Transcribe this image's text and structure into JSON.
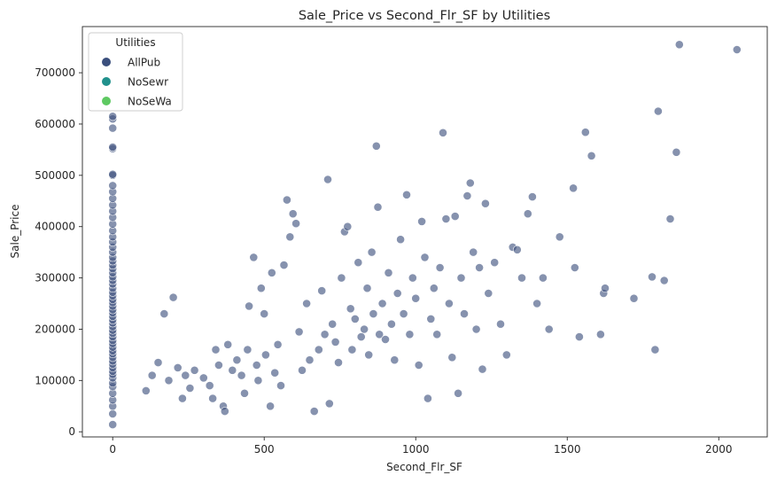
{
  "chart_data": {
    "type": "scatter",
    "title": "Sale_Price vs Second_Flr_SF by Utilities",
    "xlabel": "Second_Flr_SF",
    "ylabel": "Sale_Price",
    "xlim": [
      -100,
      2160
    ],
    "ylim": [
      -10000,
      790000
    ],
    "xticks": [
      0,
      500,
      1000,
      1500,
      2000
    ],
    "yticks": [
      0,
      100000,
      200000,
      300000,
      400000,
      500000,
      600000,
      700000
    ],
    "grid": false,
    "legend": {
      "title": "Utilities",
      "placement": "top-left",
      "entries": [
        {
          "label": "AllPub",
          "color": "#3b4f7d"
        },
        {
          "label": "NoSewr",
          "color": "#21918c"
        },
        {
          "label": "NoSeWa",
          "color": "#5ec962"
        }
      ]
    },
    "series": [
      {
        "name": "AllPub",
        "color": "#3b4f7d",
        "points": [
          [
            0,
            14000
          ],
          [
            0,
            35000
          ],
          [
            0,
            50000
          ],
          [
            0,
            62000
          ],
          [
            0,
            75000
          ],
          [
            0,
            88000
          ],
          [
            0,
            95000
          ],
          [
            0,
            105000
          ],
          [
            0,
            112000
          ],
          [
            0,
            118000
          ],
          [
            0,
            125000
          ],
          [
            0,
            132000
          ],
          [
            0,
            138000
          ],
          [
            0,
            145000
          ],
          [
            0,
            152000
          ],
          [
            0,
            158000
          ],
          [
            0,
            165000
          ],
          [
            0,
            172000
          ],
          [
            0,
            178000
          ],
          [
            0,
            185000
          ],
          [
            0,
            192000
          ],
          [
            0,
            198000
          ],
          [
            0,
            205000
          ],
          [
            0,
            212000
          ],
          [
            0,
            218000
          ],
          [
            0,
            225000
          ],
          [
            0,
            232000
          ],
          [
            0,
            238000
          ],
          [
            0,
            245000
          ],
          [
            0,
            252000
          ],
          [
            0,
            258000
          ],
          [
            0,
            265000
          ],
          [
            0,
            272000
          ],
          [
            0,
            280000
          ],
          [
            0,
            288000
          ],
          [
            0,
            295000
          ],
          [
            0,
            302000
          ],
          [
            0,
            310000
          ],
          [
            0,
            318000
          ],
          [
            0,
            325000
          ],
          [
            0,
            333000
          ],
          [
            0,
            340000
          ],
          [
            0,
            350000
          ],
          [
            0,
            360000
          ],
          [
            0,
            370000
          ],
          [
            0,
            380000
          ],
          [
            0,
            392000
          ],
          [
            0,
            405000
          ],
          [
            0,
            418000
          ],
          [
            0,
            430000
          ],
          [
            0,
            442000
          ],
          [
            0,
            455000
          ],
          [
            0,
            468000
          ],
          [
            0,
            480000
          ],
          [
            0,
            500000
          ],
          [
            0,
            502000
          ],
          [
            0,
            552000
          ],
          [
            0,
            555000
          ],
          [
            0,
            592000
          ],
          [
            0,
            610000
          ],
          [
            0,
            615000
          ],
          [
            110,
            80000
          ],
          [
            130,
            110000
          ],
          [
            150,
            135000
          ],
          [
            170,
            230000
          ],
          [
            185,
            100000
          ],
          [
            200,
            262000
          ],
          [
            215,
            125000
          ],
          [
            230,
            65000
          ],
          [
            240,
            110000
          ],
          [
            255,
            85000
          ],
          [
            270,
            120000
          ],
          [
            300,
            105000
          ],
          [
            320,
            90000
          ],
          [
            330,
            65000
          ],
          [
            340,
            160000
          ],
          [
            350,
            130000
          ],
          [
            365,
            50000
          ],
          [
            370,
            40000
          ],
          [
            380,
            170000
          ],
          [
            395,
            120000
          ],
          [
            410,
            140000
          ],
          [
            425,
            110000
          ],
          [
            435,
            75000
          ],
          [
            445,
            160000
          ],
          [
            450,
            245000
          ],
          [
            465,
            340000
          ],
          [
            475,
            130000
          ],
          [
            480,
            100000
          ],
          [
            490,
            280000
          ],
          [
            500,
            230000
          ],
          [
            505,
            150000
          ],
          [
            520,
            50000
          ],
          [
            525,
            310000
          ],
          [
            535,
            115000
          ],
          [
            545,
            170000
          ],
          [
            555,
            90000
          ],
          [
            565,
            325000
          ],
          [
            575,
            452000
          ],
          [
            585,
            380000
          ],
          [
            595,
            425000
          ],
          [
            605,
            406000
          ],
          [
            615,
            195000
          ],
          [
            625,
            120000
          ],
          [
            640,
            250000
          ],
          [
            650,
            140000
          ],
          [
            665,
            40000
          ],
          [
            680,
            160000
          ],
          [
            690,
            275000
          ],
          [
            700,
            190000
          ],
          [
            710,
            492000
          ],
          [
            715,
            55000
          ],
          [
            725,
            210000
          ],
          [
            735,
            175000
          ],
          [
            745,
            135000
          ],
          [
            755,
            300000
          ],
          [
            765,
            390000
          ],
          [
            775,
            400000
          ],
          [
            785,
            240000
          ],
          [
            790,
            160000
          ],
          [
            800,
            220000
          ],
          [
            810,
            330000
          ],
          [
            820,
            185000
          ],
          [
            830,
            200000
          ],
          [
            840,
            280000
          ],
          [
            845,
            150000
          ],
          [
            855,
            350000
          ],
          [
            860,
            230000
          ],
          [
            870,
            557000
          ],
          [
            875,
            438000
          ],
          [
            880,
            190000
          ],
          [
            890,
            250000
          ],
          [
            900,
            180000
          ],
          [
            910,
            310000
          ],
          [
            920,
            210000
          ],
          [
            930,
            140000
          ],
          [
            940,
            270000
          ],
          [
            950,
            375000
          ],
          [
            960,
            230000
          ],
          [
            970,
            462000
          ],
          [
            980,
            190000
          ],
          [
            990,
            300000
          ],
          [
            1000,
            260000
          ],
          [
            1010,
            130000
          ],
          [
            1020,
            410000
          ],
          [
            1030,
            340000
          ],
          [
            1040,
            65000
          ],
          [
            1050,
            220000
          ],
          [
            1060,
            280000
          ],
          [
            1070,
            190000
          ],
          [
            1080,
            320000
          ],
          [
            1090,
            583000
          ],
          [
            1100,
            415000
          ],
          [
            1110,
            250000
          ],
          [
            1120,
            145000
          ],
          [
            1130,
            420000
          ],
          [
            1140,
            75000
          ],
          [
            1150,
            300000
          ],
          [
            1160,
            230000
          ],
          [
            1170,
            460000
          ],
          [
            1180,
            485000
          ],
          [
            1190,
            350000
          ],
          [
            1200,
            200000
          ],
          [
            1210,
            320000
          ],
          [
            1220,
            122000
          ],
          [
            1230,
            445000
          ],
          [
            1240,
            270000
          ],
          [
            1260,
            330000
          ],
          [
            1280,
            210000
          ],
          [
            1300,
            150000
          ],
          [
            1320,
            360000
          ],
          [
            1335,
            355000
          ],
          [
            1350,
            300000
          ],
          [
            1370,
            425000
          ],
          [
            1385,
            458000
          ],
          [
            1400,
            250000
          ],
          [
            1420,
            300000
          ],
          [
            1440,
            200000
          ],
          [
            1475,
            380000
          ],
          [
            1520,
            475000
          ],
          [
            1525,
            320000
          ],
          [
            1540,
            185000
          ],
          [
            1560,
            584000
          ],
          [
            1580,
            538000
          ],
          [
            1610,
            190000
          ],
          [
            1620,
            270000
          ],
          [
            1625,
            280000
          ],
          [
            1720,
            260000
          ],
          [
            1780,
            302000
          ],
          [
            1790,
            160000
          ],
          [
            1800,
            625000
          ],
          [
            1820,
            295000
          ],
          [
            1840,
            415000
          ],
          [
            1860,
            545000
          ],
          [
            1870,
            755000
          ],
          [
            2060,
            745000
          ]
        ]
      }
    ]
  }
}
